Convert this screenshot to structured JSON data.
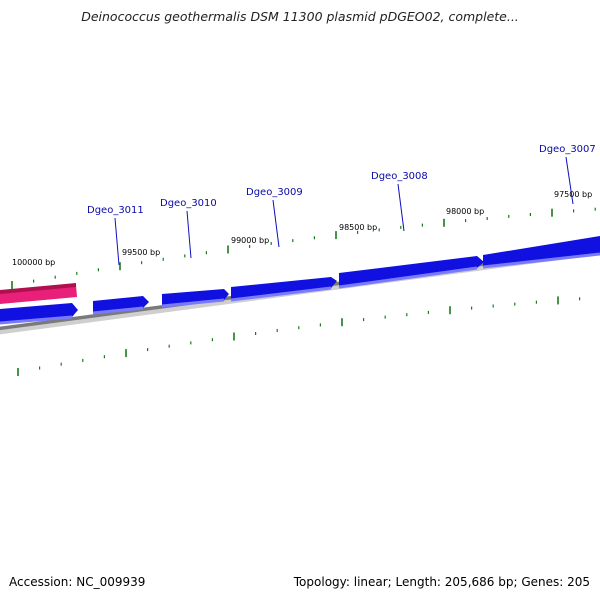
{
  "header": {
    "title": "Deinococcus geothermalis DSM 11300 plasmid pDGEO02, complete..."
  },
  "footer": {
    "accession": "Accession: NC_009939",
    "stats": "Topology: linear; Length: 205,686 bp; Genes: 205"
  },
  "colors": {
    "gene": "#1010e0",
    "gene_highlight": "#e8207a",
    "label": "#0a0aa8",
    "tick": "#1a7a1a",
    "backbone": "#777777"
  },
  "axis": {
    "labels": [
      {
        "text": "100000 bp",
        "bp": 100000
      },
      {
        "text": "99500 bp",
        "bp": 99500
      },
      {
        "text": "99000 bp",
        "bp": 99000
      },
      {
        "text": "98500 bp",
        "bp": 98500
      },
      {
        "text": "98000 bp",
        "bp": 98000
      },
      {
        "text": "97500 bp",
        "bp": 97500
      }
    ]
  },
  "genes": [
    {
      "name": "Dgeo_3011"
    },
    {
      "name": "Dgeo_3010"
    },
    {
      "name": "Dgeo_3009"
    },
    {
      "name": "Dgeo_3008"
    },
    {
      "name": "Dgeo_3007"
    }
  ]
}
